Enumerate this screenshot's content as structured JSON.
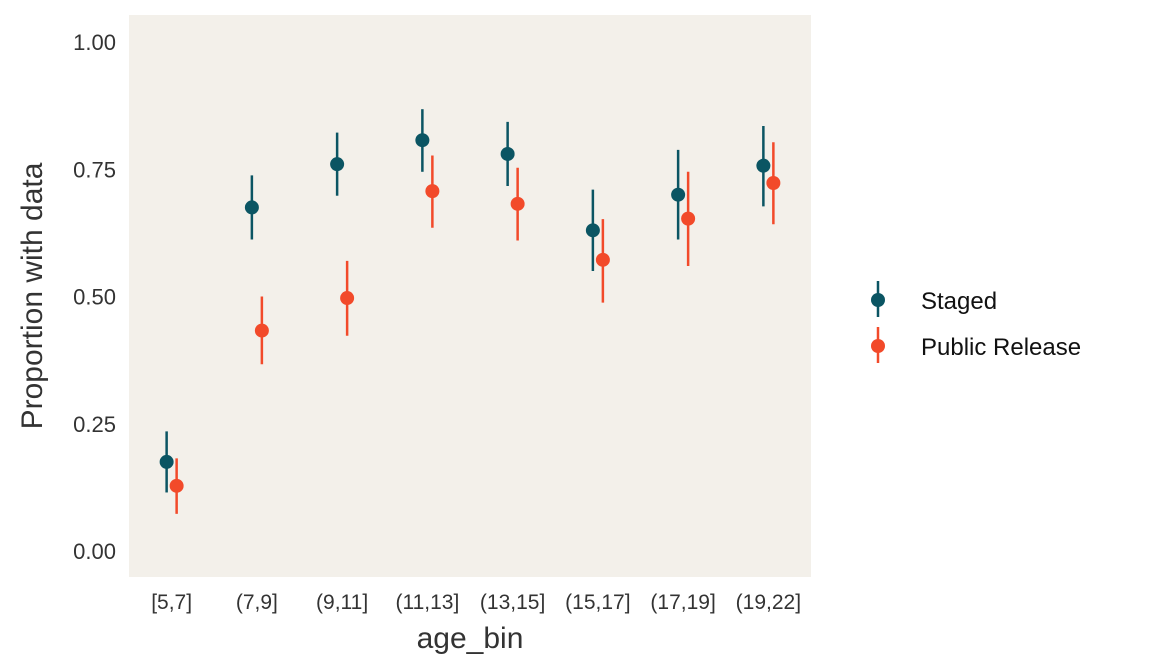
{
  "chart_data": {
    "type": "scatter",
    "title": "",
    "xlabel": "age_bin",
    "ylabel": "Proportion with data",
    "ylim": [
      -0.05,
      1.05
    ],
    "yticks": [
      "0.00",
      "0.25",
      "0.50",
      "0.75",
      "1.00"
    ],
    "ytick_values": [
      0,
      0.25,
      0.5,
      0.75,
      1.0
    ],
    "grid": false,
    "panel_background": "#f3f0ea",
    "legend_position": "right",
    "categories": [
      "[5,7]",
      "(7,9]",
      "(9,11]",
      "(11,13]",
      "(13,15]",
      "(15,17]",
      "(17,19]",
      "(19,22]"
    ],
    "series": [
      {
        "name": "Staged",
        "color": "#0b5563",
        "values": [
          0.175,
          0.675,
          0.76,
          0.807,
          0.78,
          0.63,
          0.7,
          0.757
        ],
        "lower": [
          0.115,
          0.612,
          0.698,
          0.745,
          0.717,
          0.55,
          0.612,
          0.677
        ],
        "upper": [
          0.235,
          0.738,
          0.822,
          0.868,
          0.843,
          0.71,
          0.788,
          0.835
        ]
      },
      {
        "name": "Public Release",
        "color": "#f24a2a",
        "values": [
          0.128,
          0.433,
          0.497,
          0.707,
          0.682,
          0.572,
          0.653,
          0.723
        ],
        "lower": [
          0.073,
          0.367,
          0.423,
          0.635,
          0.61,
          0.488,
          0.56,
          0.642
        ],
        "upper": [
          0.182,
          0.5,
          0.57,
          0.777,
          0.753,
          0.652,
          0.745,
          0.803
        ]
      }
    ]
  }
}
